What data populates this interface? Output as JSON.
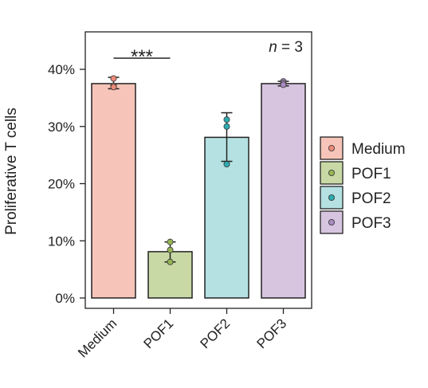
{
  "chart_data": {
    "type": "bar",
    "ylabel": "Proliferative T cells",
    "categories": [
      "Medium",
      "POF1",
      "POF2",
      "POF3"
    ],
    "values": [
      37.5,
      8.1,
      28.1,
      37.5
    ],
    "error_low": [
      36.6,
      6.3,
      23.9,
      37.1
    ],
    "error_high": [
      38.6,
      9.8,
      32.4,
      37.9
    ],
    "points": [
      [
        38.4,
        37.1,
        36.9
      ],
      [
        9.8,
        8.4,
        6.3
      ],
      [
        31.2,
        30.0,
        23.4
      ],
      [
        37.9,
        37.6,
        37.3
      ]
    ],
    "colors": [
      "#f6c4b9",
      "#c9d9a6",
      "#b5e1e3",
      "#d7c5e0"
    ],
    "point_colors": [
      "#ed8a78",
      "#97b456",
      "#2dabb0",
      "#a78cbf"
    ],
    "yticks": [
      0,
      10,
      20,
      30,
      40
    ],
    "ytick_labels": [
      "0%",
      "10%",
      "20%",
      "30%",
      "40%"
    ],
    "ylim": [
      0,
      46
    ],
    "legend": [
      "Medium",
      "POF1",
      "POF2",
      "POF3"
    ],
    "legend_position": "right",
    "annotations": {
      "n_label": "n = 3",
      "significance": "***"
    }
  }
}
